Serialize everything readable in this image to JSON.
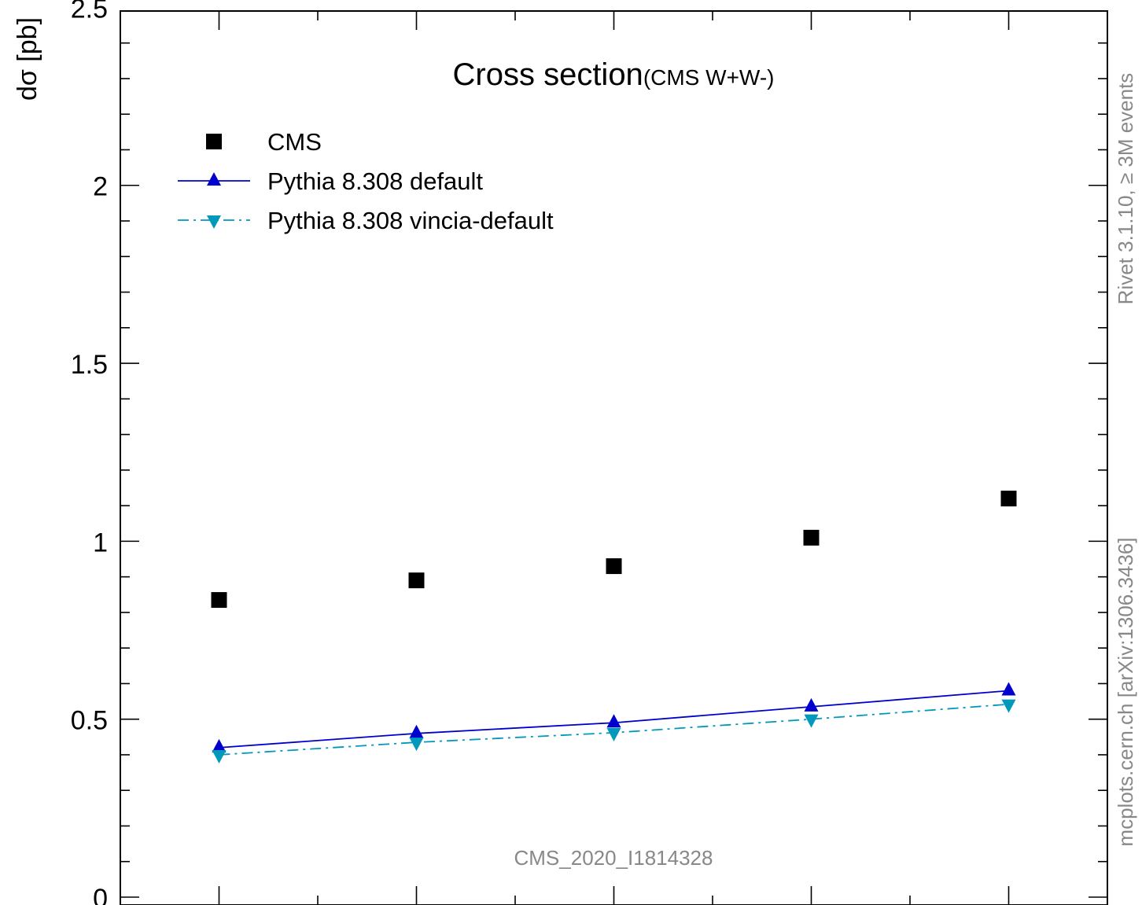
{
  "chart_data": {
    "type": "scatter",
    "title": "Cross section",
    "title_suffix": "(CMS W+W-)",
    "xlabel": "",
    "ylabel": "dσ [pb]",
    "ylim": [
      0,
      2.5
    ],
    "xlim": [
      0.5,
      5.5
    ],
    "x": [
      1,
      2,
      3,
      4,
      5
    ],
    "y_ticks": [
      "0",
      "0.5",
      "1",
      "1.5",
      "2",
      "2.5"
    ],
    "legend_position": "top-left",
    "series": [
      {
        "name": "CMS",
        "marker": "square",
        "color": "#000000",
        "line": "none",
        "values": [
          0.835,
          0.89,
          0.93,
          1.01,
          1.12
        ]
      },
      {
        "name": "Pythia 8.308 default",
        "marker": "triangle-up",
        "color": "#0000cc",
        "line": "solid",
        "values": [
          0.42,
          0.46,
          0.49,
          0.535,
          0.58
        ]
      },
      {
        "name": "Pythia 8.308 vincia-default",
        "marker": "triangle-down",
        "color": "#0099bb",
        "line": "dashdot",
        "values": [
          0.4,
          0.435,
          0.462,
          0.5,
          0.542
        ]
      }
    ],
    "annotations": {
      "analysis_id": "CMS_2020_I1814328",
      "side_top": "Rivet 3.1.10, ≥ 3M events",
      "side_bottom": "mcplots.cern.ch [arXiv:1306.3436]"
    }
  }
}
